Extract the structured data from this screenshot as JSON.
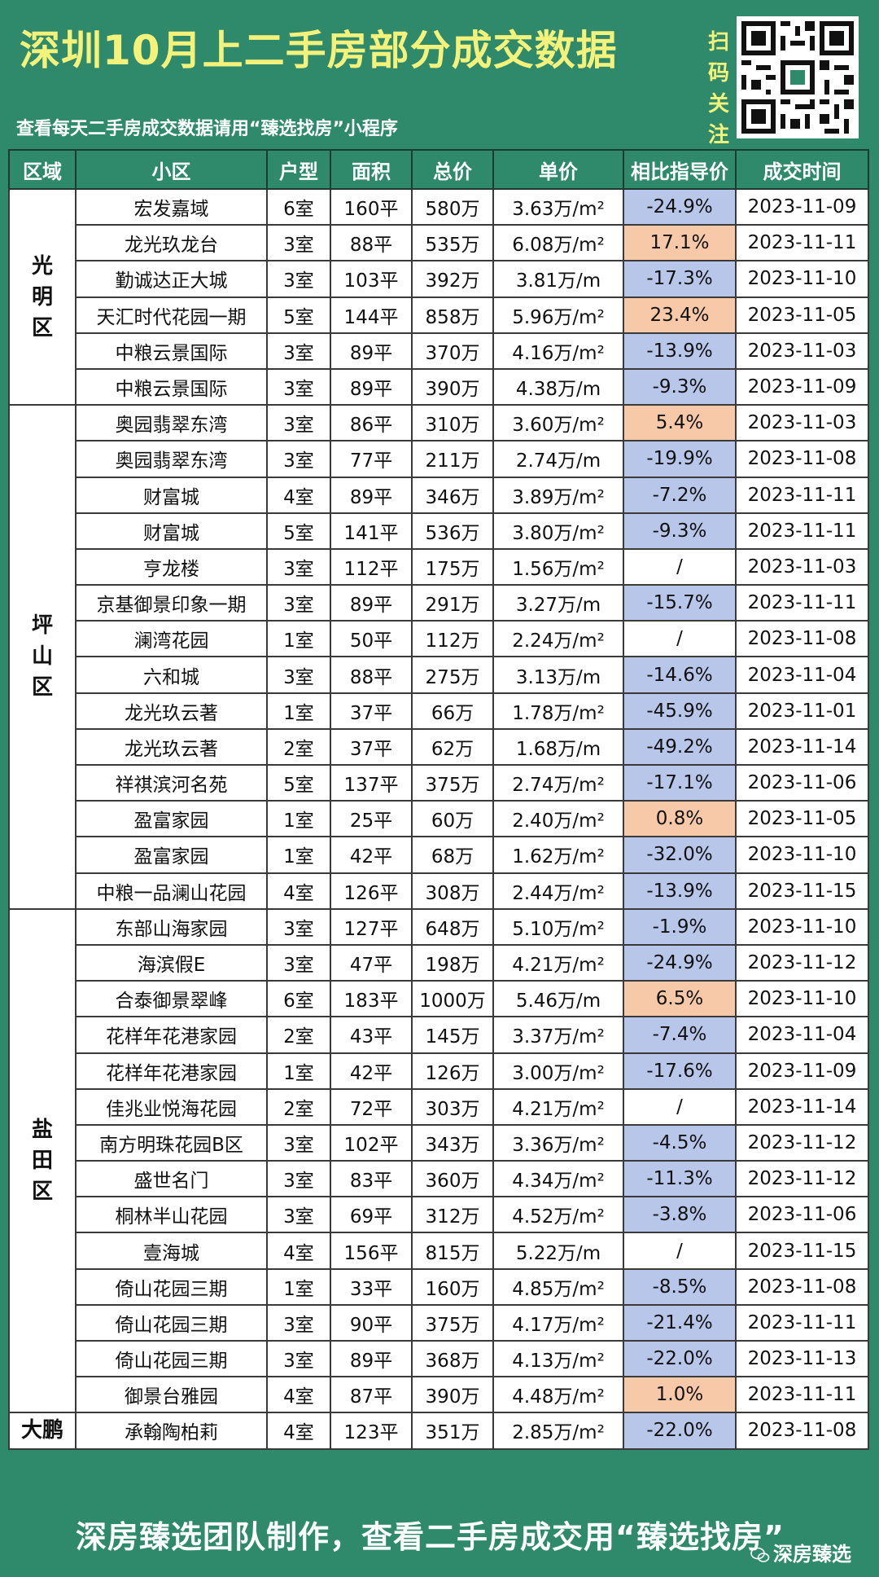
{
  "header": {
    "title": "深圳10月上二手房部分成交数据",
    "subtitle": "查看每天二手房成交数据请用“臻选找房”小程序",
    "scan_label": [
      "扫",
      "码",
      "关",
      "注"
    ]
  },
  "table": {
    "columns": [
      "区域",
      "小区",
      "户型",
      "面积",
      "总价",
      "单价",
      "相比指导价",
      "成交时间"
    ],
    "districts": [
      {
        "name": "光明区",
        "chars": [
          "光",
          "明",
          "区"
        ],
        "rows": [
          {
            "community": "宏发嘉域",
            "layout": "6室",
            "area": "160平",
            "total": "580万",
            "unit": "3.63万/m²",
            "diff": "-24.9%",
            "status": "neg",
            "date": "2023-11-09"
          },
          {
            "community": "龙光玖龙台",
            "layout": "3室",
            "area": "88平",
            "total": "535万",
            "unit": "6.08万/m²",
            "diff": "17.1%",
            "status": "pos",
            "date": "2023-11-11"
          },
          {
            "community": "勤诚达正大城",
            "layout": "3室",
            "area": "103平",
            "total": "392万",
            "unit": "3.81万/m",
            "diff": "-17.3%",
            "status": "neg",
            "date": "2023-11-10"
          },
          {
            "community": "天汇时代花园一期",
            "layout": "5室",
            "area": "144平",
            "total": "858万",
            "unit": "5.96万/m²",
            "diff": "23.4%",
            "status": "pos",
            "date": "2023-11-05"
          },
          {
            "community": "中粮云景国际",
            "layout": "3室",
            "area": "89平",
            "total": "370万",
            "unit": "4.16万/m²",
            "diff": "-13.9%",
            "status": "neg",
            "date": "2023-11-03"
          },
          {
            "community": "中粮云景国际",
            "layout": "3室",
            "area": "89平",
            "total": "390万",
            "unit": "4.38万/m",
            "diff": "-9.3%",
            "status": "neg",
            "date": "2023-11-09"
          }
        ]
      },
      {
        "name": "坪山区",
        "chars": [
          "坪",
          "山",
          "区"
        ],
        "rows": [
          {
            "community": "奥园翡翠东湾",
            "layout": "3室",
            "area": "86平",
            "total": "310万",
            "unit": "3.60万/m²",
            "diff": "5.4%",
            "status": "pos",
            "date": "2023-11-03"
          },
          {
            "community": "奥园翡翠东湾",
            "layout": "3室",
            "area": "77平",
            "total": "211万",
            "unit": "2.74万/m",
            "diff": "-19.9%",
            "status": "neg",
            "date": "2023-11-08"
          },
          {
            "community": "财富城",
            "layout": "4室",
            "area": "89平",
            "total": "346万",
            "unit": "3.89万/m²",
            "diff": "-7.2%",
            "status": "neg",
            "date": "2023-11-11"
          },
          {
            "community": "财富城",
            "layout": "5室",
            "area": "141平",
            "total": "536万",
            "unit": "3.80万/m²",
            "diff": "-9.3%",
            "status": "neg",
            "date": "2023-11-11"
          },
          {
            "community": "亨龙楼",
            "layout": "3室",
            "area": "112平",
            "total": "175万",
            "unit": "1.56万/m²",
            "diff": "/",
            "status": "none",
            "date": "2023-11-03"
          },
          {
            "community": "京基御景印象一期",
            "layout": "3室",
            "area": "89平",
            "total": "291万",
            "unit": "3.27万/m",
            "diff": "-15.7%",
            "status": "neg",
            "date": "2023-11-11"
          },
          {
            "community": "澜湾花园",
            "layout": "1室",
            "area": "50平",
            "total": "112万",
            "unit": "2.24万/m²",
            "diff": "/",
            "status": "none",
            "date": "2023-11-08"
          },
          {
            "community": "六和城",
            "layout": "3室",
            "area": "88平",
            "total": "275万",
            "unit": "3.13万/m",
            "diff": "-14.6%",
            "status": "neg",
            "date": "2023-11-04"
          },
          {
            "community": "龙光玖云著",
            "layout": "1室",
            "area": "37平",
            "total": "66万",
            "unit": "1.78万/m²",
            "diff": "-45.9%",
            "status": "neg",
            "date": "2023-11-01"
          },
          {
            "community": "龙光玖云著",
            "layout": "2室",
            "area": "37平",
            "total": "62万",
            "unit": "1.68万/m",
            "diff": "-49.2%",
            "status": "neg",
            "date": "2023-11-14"
          },
          {
            "community": "祥祺滨河名苑",
            "layout": "5室",
            "area": "137平",
            "total": "375万",
            "unit": "2.74万/m²",
            "diff": "-17.1%",
            "status": "neg",
            "date": "2023-11-06"
          },
          {
            "community": "盈富家园",
            "layout": "1室",
            "area": "25平",
            "total": "60万",
            "unit": "2.40万/m²",
            "diff": "0.8%",
            "status": "pos",
            "date": "2023-11-05"
          },
          {
            "community": "盈富家园",
            "layout": "1室",
            "area": "42平",
            "total": "68万",
            "unit": "1.62万/m²",
            "diff": "-32.0%",
            "status": "neg",
            "date": "2023-11-10"
          },
          {
            "community": "中粮一品澜山花园",
            "layout": "4室",
            "area": "126平",
            "total": "308万",
            "unit": "2.44万/m²",
            "diff": "-13.9%",
            "status": "neg",
            "date": "2023-11-15"
          }
        ]
      },
      {
        "name": "盐田区",
        "chars": [
          "盐",
          "田",
          "区"
        ],
        "rows": [
          {
            "community": "东部山海家园",
            "layout": "3室",
            "area": "127平",
            "total": "648万",
            "unit": "5.10万/m²",
            "diff": "-1.9%",
            "status": "neg",
            "date": "2023-11-10"
          },
          {
            "community": "海滨假E",
            "layout": "3室",
            "area": "47平",
            "total": "198万",
            "unit": "4.21万/m²",
            "diff": "-24.9%",
            "status": "neg",
            "date": "2023-11-12"
          },
          {
            "community": "合泰御景翠峰",
            "layout": "6室",
            "area": "183平",
            "total": "1000万",
            "unit": "5.46万/m",
            "diff": "6.5%",
            "status": "pos",
            "date": "2023-11-10"
          },
          {
            "community": "花样年花港家园",
            "layout": "2室",
            "area": "43平",
            "total": "145万",
            "unit": "3.37万/m²",
            "diff": "-7.4%",
            "status": "neg",
            "date": "2023-11-04"
          },
          {
            "community": "花样年花港家园",
            "layout": "1室",
            "area": "42平",
            "total": "126万",
            "unit": "3.00万/m²",
            "diff": "-17.6%",
            "status": "neg",
            "date": "2023-11-09"
          },
          {
            "community": "佳兆业悦海花园",
            "layout": "2室",
            "area": "72平",
            "total": "303万",
            "unit": "4.21万/m²",
            "diff": "/",
            "status": "none",
            "date": "2023-11-14"
          },
          {
            "community": "南方明珠花园B区",
            "layout": "3室",
            "area": "102平",
            "total": "343万",
            "unit": "3.36万/m²",
            "diff": "-4.5%",
            "status": "neg",
            "date": "2023-11-12"
          },
          {
            "community": "盛世名门",
            "layout": "3室",
            "area": "83平",
            "total": "360万",
            "unit": "4.34万/m²",
            "diff": "-11.3%",
            "status": "neg",
            "date": "2023-11-12"
          },
          {
            "community": "桐林半山花园",
            "layout": "3室",
            "area": "69平",
            "total": "312万",
            "unit": "4.52万/m²",
            "diff": "-3.8%",
            "status": "neg",
            "date": "2023-11-06"
          },
          {
            "community": "壹海城",
            "layout": "4室",
            "area": "156平",
            "total": "815万",
            "unit": "5.22万/m",
            "diff": "/",
            "status": "none",
            "date": "2023-11-15"
          },
          {
            "community": "倚山花园三期",
            "layout": "1室",
            "area": "33平",
            "total": "160万",
            "unit": "4.85万/m²",
            "diff": "-8.5%",
            "status": "neg",
            "date": "2023-11-08"
          },
          {
            "community": "倚山花园三期",
            "layout": "3室",
            "area": "90平",
            "total": "375万",
            "unit": "4.17万/m²",
            "diff": "-21.4%",
            "status": "neg",
            "date": "2023-11-11"
          },
          {
            "community": "倚山花园三期",
            "layout": "3室",
            "area": "89平",
            "total": "368万",
            "unit": "4.13万/m²",
            "diff": "-22.0%",
            "status": "neg",
            "date": "2023-11-13"
          },
          {
            "community": "御景台雅园",
            "layout": "4室",
            "area": "87平",
            "total": "390万",
            "unit": "4.48万/m²",
            "diff": "1.0%",
            "status": "pos",
            "date": "2023-11-11"
          }
        ]
      },
      {
        "name": "大鹏",
        "chars": [
          "大鹏"
        ],
        "rows": [
          {
            "community": "承翰陶柏莉",
            "layout": "4室",
            "area": "123平",
            "total": "351万",
            "unit": "2.85万/m²",
            "diff": "-22.0%",
            "status": "neg",
            "date": "2023-11-08"
          }
        ]
      }
    ]
  },
  "footer": {
    "text": "深房臻选团队制作，查看二手房成交用“臻选找房”",
    "brand": "深房臻选"
  },
  "colors": {
    "header_bg": "#2f8a6b",
    "title": "#f4f27a",
    "negative_cell": "#b8c6ea",
    "positive_cell": "#f7c9a8"
  }
}
